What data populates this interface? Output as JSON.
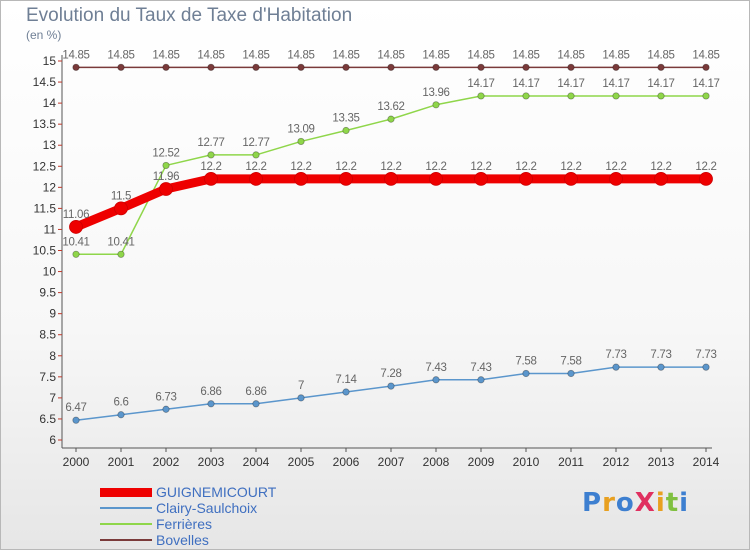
{
  "title": "Evolution du Taux de Taxe d'Habitation",
  "unit_label": "(en %)",
  "logo": {
    "text": "ProXiti",
    "colors": [
      "#3d7fd0",
      "#e8a020",
      "#3d7fd0",
      "#e03060",
      "#e8a020",
      "#80c040",
      "#3d7fd0"
    ]
  },
  "chart_data": {
    "type": "line",
    "x": [
      2000,
      2001,
      2002,
      2003,
      2004,
      2005,
      2006,
      2007,
      2008,
      2009,
      2010,
      2011,
      2012,
      2013,
      2014
    ],
    "ylim": [
      6,
      15
    ],
    "yticks": [
      "6",
      "6.5",
      "7",
      "7.5",
      "8",
      "8.5",
      "9",
      "9.5",
      "10",
      "10.5",
      "11",
      "11.5",
      "12",
      "12.5",
      "13",
      "13.5",
      "14",
      "14.5",
      "15"
    ],
    "grid": false,
    "legend_position": "bottom-left",
    "series": [
      {
        "name": "GUIGNEMICOURT",
        "color": "#ee0000",
        "highlight": true,
        "values": [
          11.06,
          11.5,
          11.96,
          12.2,
          12.2,
          12.2,
          12.2,
          12.2,
          12.2,
          12.2,
          12.2,
          12.2,
          12.2,
          12.2,
          12.2
        ],
        "labels": [
          "11.06",
          "11.5",
          "11.96",
          "12.2",
          "12.2",
          "12.2",
          "12.2",
          "12.2",
          "12.2",
          "12.2",
          "12.2",
          "12.2",
          "12.2",
          "12.2",
          "12.2"
        ]
      },
      {
        "name": "Clairy-Saulchoix",
        "color": "#5b96cc",
        "values": [
          6.47,
          6.6,
          6.73,
          6.86,
          6.86,
          7,
          7.14,
          7.28,
          7.43,
          7.43,
          7.58,
          7.58,
          7.73,
          7.73,
          7.73
        ],
        "labels": [
          "6.47",
          "6.6",
          "6.73",
          "6.86",
          "6.86",
          "7",
          "7.14",
          "7.28",
          "7.43",
          "7.43",
          "7.58",
          "7.58",
          "7.73",
          "7.73",
          "7.73"
        ]
      },
      {
        "name": "Ferrières",
        "color": "#8fd64a",
        "values": [
          10.41,
          10.41,
          12.52,
          12.77,
          12.77,
          13.09,
          13.35,
          13.62,
          13.96,
          14.17,
          14.17,
          14.17,
          14.17,
          14.17,
          14.17
        ],
        "labels": [
          "10.41",
          "10.41",
          "12.52",
          "12.77",
          "12.77",
          "13.09",
          "13.35",
          "13.62",
          "13.96",
          "14.17",
          "14.17",
          "14.17",
          "14.17",
          "14.17",
          "14.17"
        ]
      },
      {
        "name": "Bovelles",
        "color": "#7a3a3a",
        "values": [
          14.85,
          14.85,
          14.85,
          14.85,
          14.85,
          14.85,
          14.85,
          14.85,
          14.85,
          14.85,
          14.85,
          14.85,
          14.85,
          14.85,
          14.85
        ],
        "labels": [
          "14.85",
          "14.85",
          "14.85",
          "14.85",
          "14.85",
          "14.85",
          "14.85",
          "14.85",
          "14.85",
          "14.85",
          "14.85",
          "14.85",
          "14.85",
          "14.85",
          "14.85"
        ]
      }
    ]
  }
}
